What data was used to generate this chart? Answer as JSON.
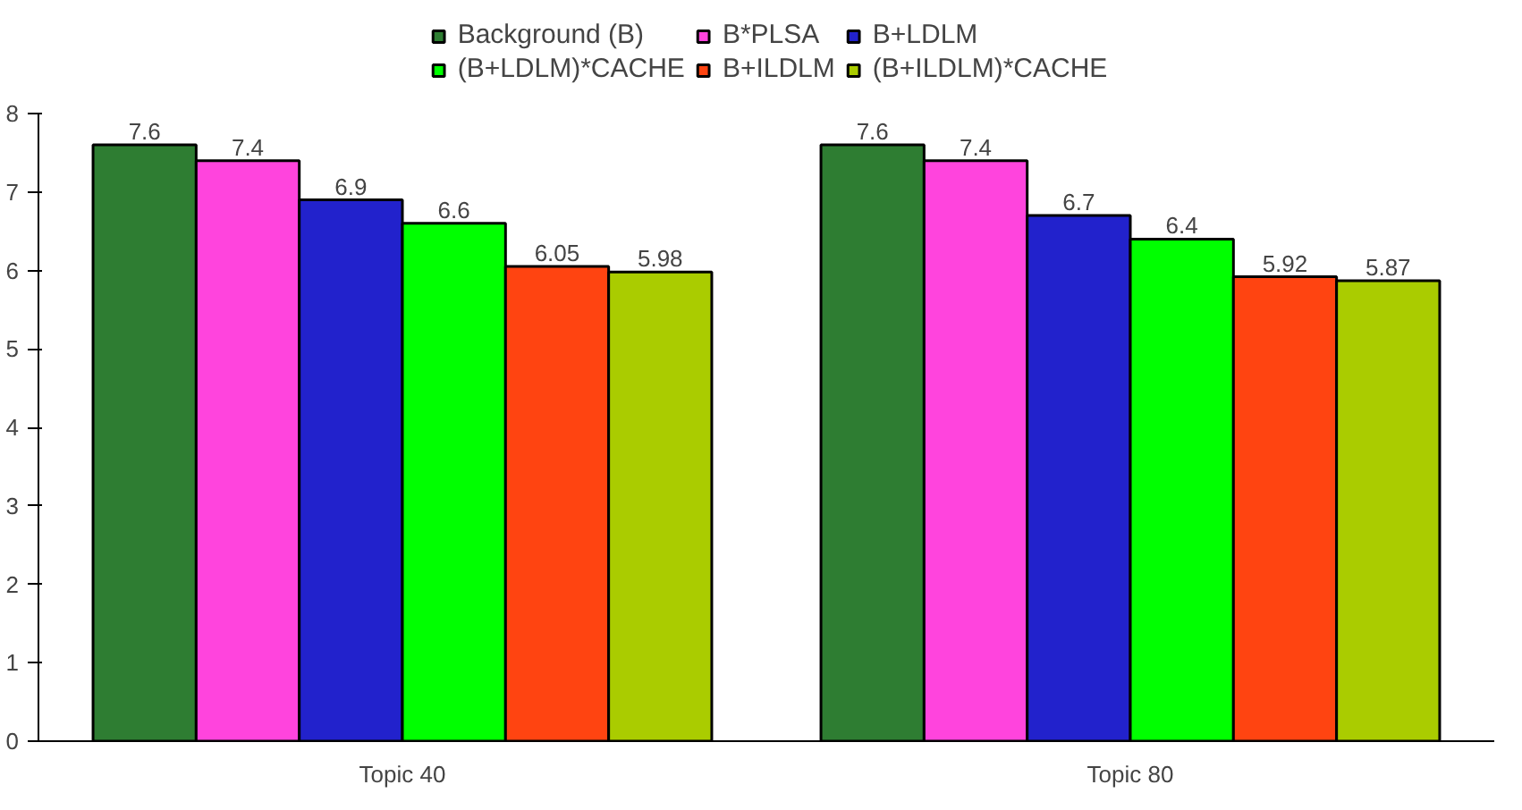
{
  "chart_data": {
    "type": "bar",
    "categories": [
      "Topic 40",
      "Topic 80"
    ],
    "series": [
      {
        "name": "Background (B)",
        "color": "#2e7d32",
        "values": [
          7.6,
          7.6
        ]
      },
      {
        "name": "B*PLSA",
        "color": "#ff44dd",
        "values": [
          7.4,
          7.4
        ]
      },
      {
        "name": "B+LDLM",
        "color": "#2222cc",
        "values": [
          6.9,
          6.7
        ]
      },
      {
        "name": "(B+LDLM)*CACHE",
        "color": "#00ff00",
        "values": [
          6.6,
          6.4
        ]
      },
      {
        "name": "B+ILDLM",
        "color": "#ff4411",
        "values": [
          6.05,
          5.92
        ]
      },
      {
        "name": "(B+ILDLM)*CACHE",
        "color": "#aacc00",
        "values": [
          5.98,
          5.87
        ]
      }
    ],
    "ylim": [
      0,
      8
    ],
    "yticks": [
      0,
      1,
      2,
      3,
      4,
      5,
      6,
      7,
      8
    ],
    "grid": false,
    "legend": "top",
    "data_labels": true
  }
}
